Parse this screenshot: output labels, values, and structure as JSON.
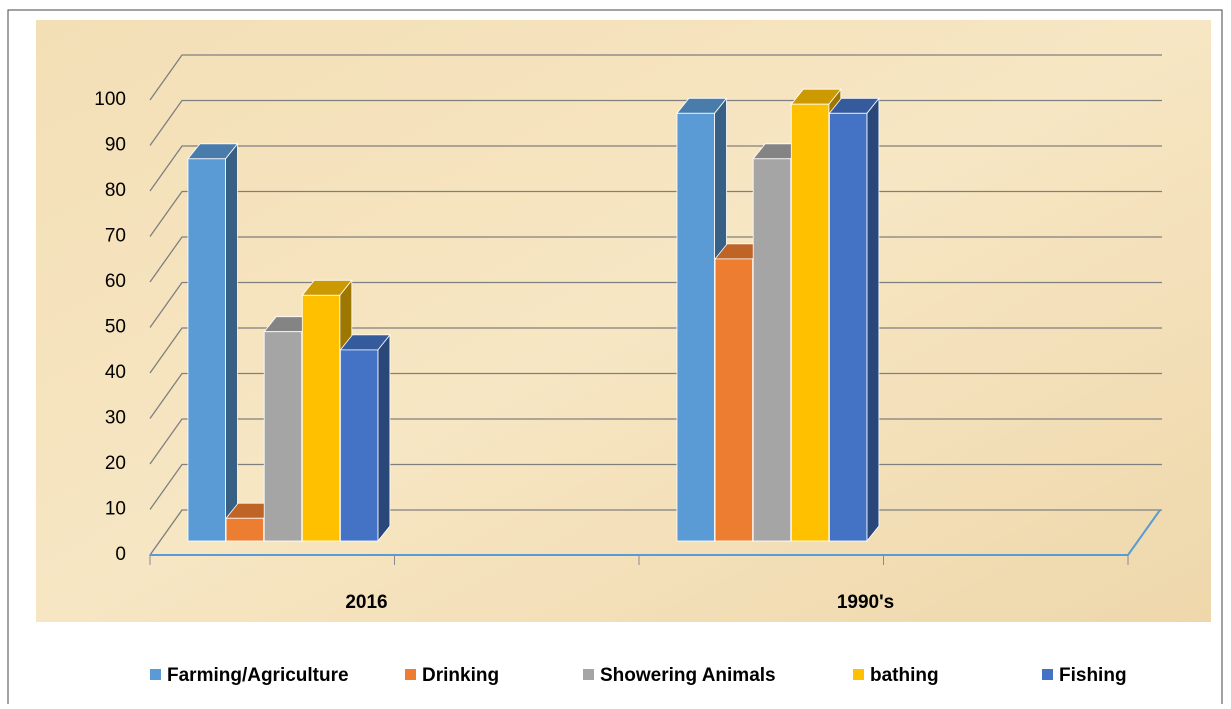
{
  "chart_data": {
    "type": "bar3d",
    "categories": [
      "2016",
      "1990's"
    ],
    "series": [
      {
        "name": "Farming/Agriculture",
        "color": "#5b9bd5",
        "values": [
          84,
          94
        ]
      },
      {
        "name": "Drinking",
        "color": "#ed7d31",
        "values": [
          5,
          62
        ]
      },
      {
        "name": "Showering Animals",
        "color": "#a5a5a5",
        "values": [
          46,
          84
        ]
      },
      {
        "name": "bathing",
        "color": "#ffc000",
        "values": [
          54,
          96
        ]
      },
      {
        "name": "Fishing",
        "color": "#4472c4",
        "values": [
          42,
          94
        ]
      }
    ],
    "ylim": [
      0,
      100
    ],
    "yticks": [
      0,
      10,
      20,
      30,
      40,
      50,
      60,
      70,
      80,
      90,
      100
    ],
    "grid": true,
    "legend": "bottom"
  }
}
